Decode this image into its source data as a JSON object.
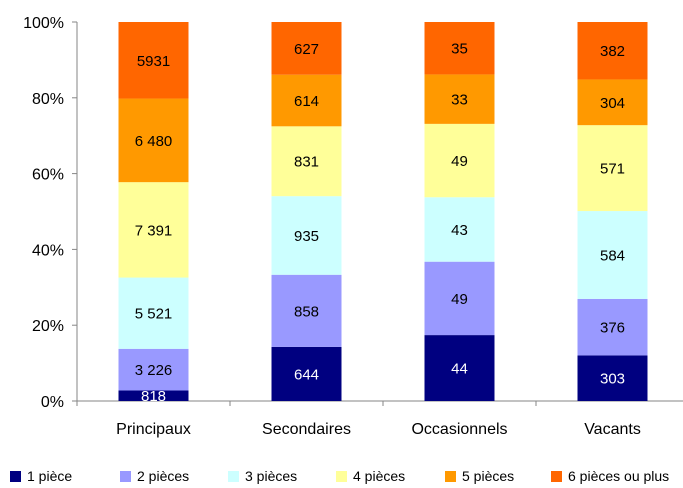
{
  "chart_data": {
    "type": "bar",
    "stacked": true,
    "normalized": true,
    "categories": [
      "Principaux",
      "Secondaires",
      "Occasionnels",
      "Vacants"
    ],
    "series": [
      {
        "name": "1 pièce",
        "color": "#000080",
        "values": [
          818,
          644,
          44,
          303
        ],
        "labels": [
          "818",
          "644",
          "44",
          "303"
        ]
      },
      {
        "name": "2 pièces",
        "color": "#9999ff",
        "values": [
          3226,
          858,
          49,
          376
        ],
        "labels": [
          "3 226",
          "858",
          "49",
          "376"
        ]
      },
      {
        "name": "3 pièces",
        "color": "#ccffff",
        "values": [
          5521,
          935,
          43,
          584
        ],
        "labels": [
          "5 521",
          "935",
          "43",
          "584"
        ]
      },
      {
        "name": "4 pièces",
        "color": "#ffff99",
        "values": [
          7391,
          831,
          49,
          571
        ],
        "labels": [
          "7 391",
          "831",
          "49",
          "571"
        ]
      },
      {
        "name": "5 pièces",
        "color": "#ff9900",
        "values": [
          6480,
          614,
          33,
          304
        ],
        "labels": [
          "6 480",
          "614",
          "33",
          "304"
        ]
      },
      {
        "name": "6 pièces ou plus",
        "color": "#ff6600",
        "values": [
          5931,
          627,
          35,
          382
        ],
        "labels": [
          "5931",
          "627",
          "35",
          "382"
        ]
      }
    ],
    "y_ticks": [
      "0%",
      "20%",
      "40%",
      "60%",
      "80%",
      "100%"
    ],
    "ylim": [
      0,
      100
    ],
    "legend_position": "bottom",
    "grid": false
  }
}
